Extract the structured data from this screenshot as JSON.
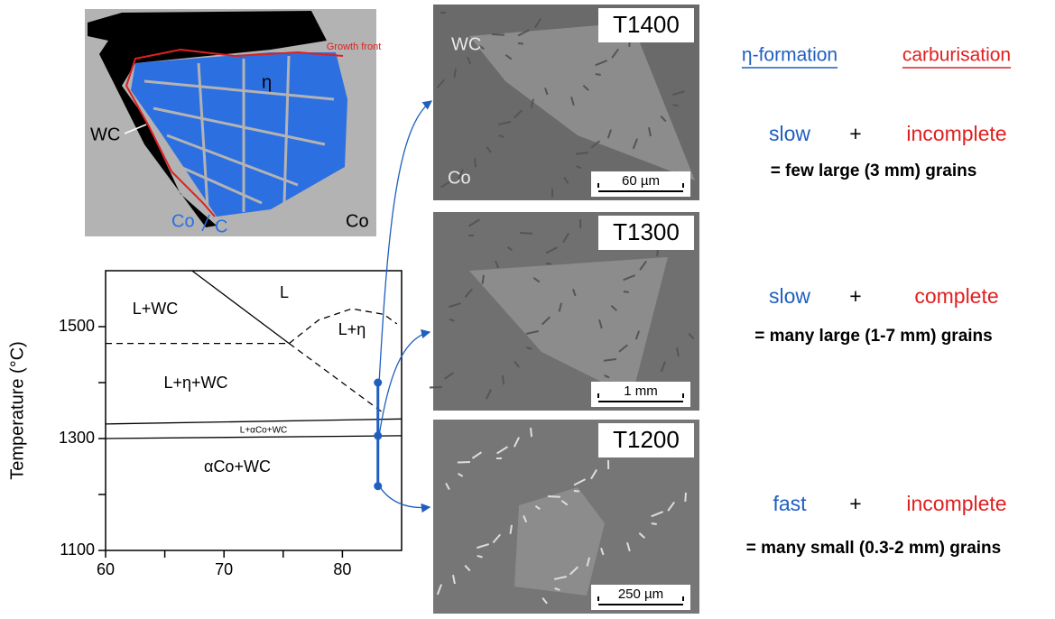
{
  "schematic": {
    "growth_front": "Growth front",
    "eta": "η",
    "wc": "WC",
    "co_matrix": "Co",
    "co_blue": "Co",
    "c_blue": "C"
  },
  "chart_data": {
    "type": "line",
    "y_label": "Temperature (°C)",
    "xlim": [
      60,
      85
    ],
    "ylim": [
      1100,
      1600
    ],
    "xticks": [
      60,
      70,
      80
    ],
    "yticks": [
      1100,
      1300,
      1500
    ],
    "xminor": [
      65,
      75
    ],
    "yminor": [
      1200,
      1400
    ],
    "regions": [
      "L+WC",
      "L",
      "L+η",
      "L+η+WC",
      "L+αCo+WC",
      "αCo+WC"
    ],
    "boundaries": [
      {
        "x": [
          67.3,
          75.5
        ],
        "y": [
          1600,
          1470
        ],
        "dashed": false
      },
      {
        "x": [
          60,
          75.5
        ],
        "y": [
          1470,
          1470
        ],
        "dashed": true
      },
      {
        "x": [
          75.5,
          78,
          80.8,
          83.5,
          84.6
        ],
        "y": [
          1470,
          1512,
          1532,
          1522,
          1505
        ],
        "dashed": true
      },
      {
        "x": [
          75.5,
          83.5
        ],
        "y": [
          1470,
          1345
        ],
        "dashed": true
      },
      {
        "x": [
          60,
          85
        ],
        "y": [
          1326,
          1335
        ],
        "dashed": false
      },
      {
        "x": [
          60,
          85
        ],
        "y": [
          1300,
          1305
        ],
        "dashed": false
      }
    ],
    "experiments": {
      "x": [
        83,
        83,
        83
      ],
      "values": [
        1400,
        1305,
        1215
      ],
      "color": "#1f5fbf"
    }
  },
  "micrographs": [
    {
      "label": "T1400",
      "scale": "60 µm",
      "phases": [
        "WC",
        "Co"
      ]
    },
    {
      "label": "T1300",
      "scale": "1 mm"
    },
    {
      "label": "T1200",
      "scale": "250 µm"
    }
  ],
  "summary": {
    "headers": [
      "η-formation",
      "carburisation"
    ],
    "rows": [
      {
        "rate": "slow",
        "plus": "+",
        "completeness": "incomplete",
        "result": "= few large (3 mm) grains"
      },
      {
        "rate": "slow",
        "plus": "+",
        "completeness": "complete",
        "result": "= many large (1-7 mm) grains"
      },
      {
        "rate": "fast",
        "plus": "+",
        "completeness": "incomplete",
        "result": "= many small (0.3-2 mm) grains"
      }
    ]
  }
}
